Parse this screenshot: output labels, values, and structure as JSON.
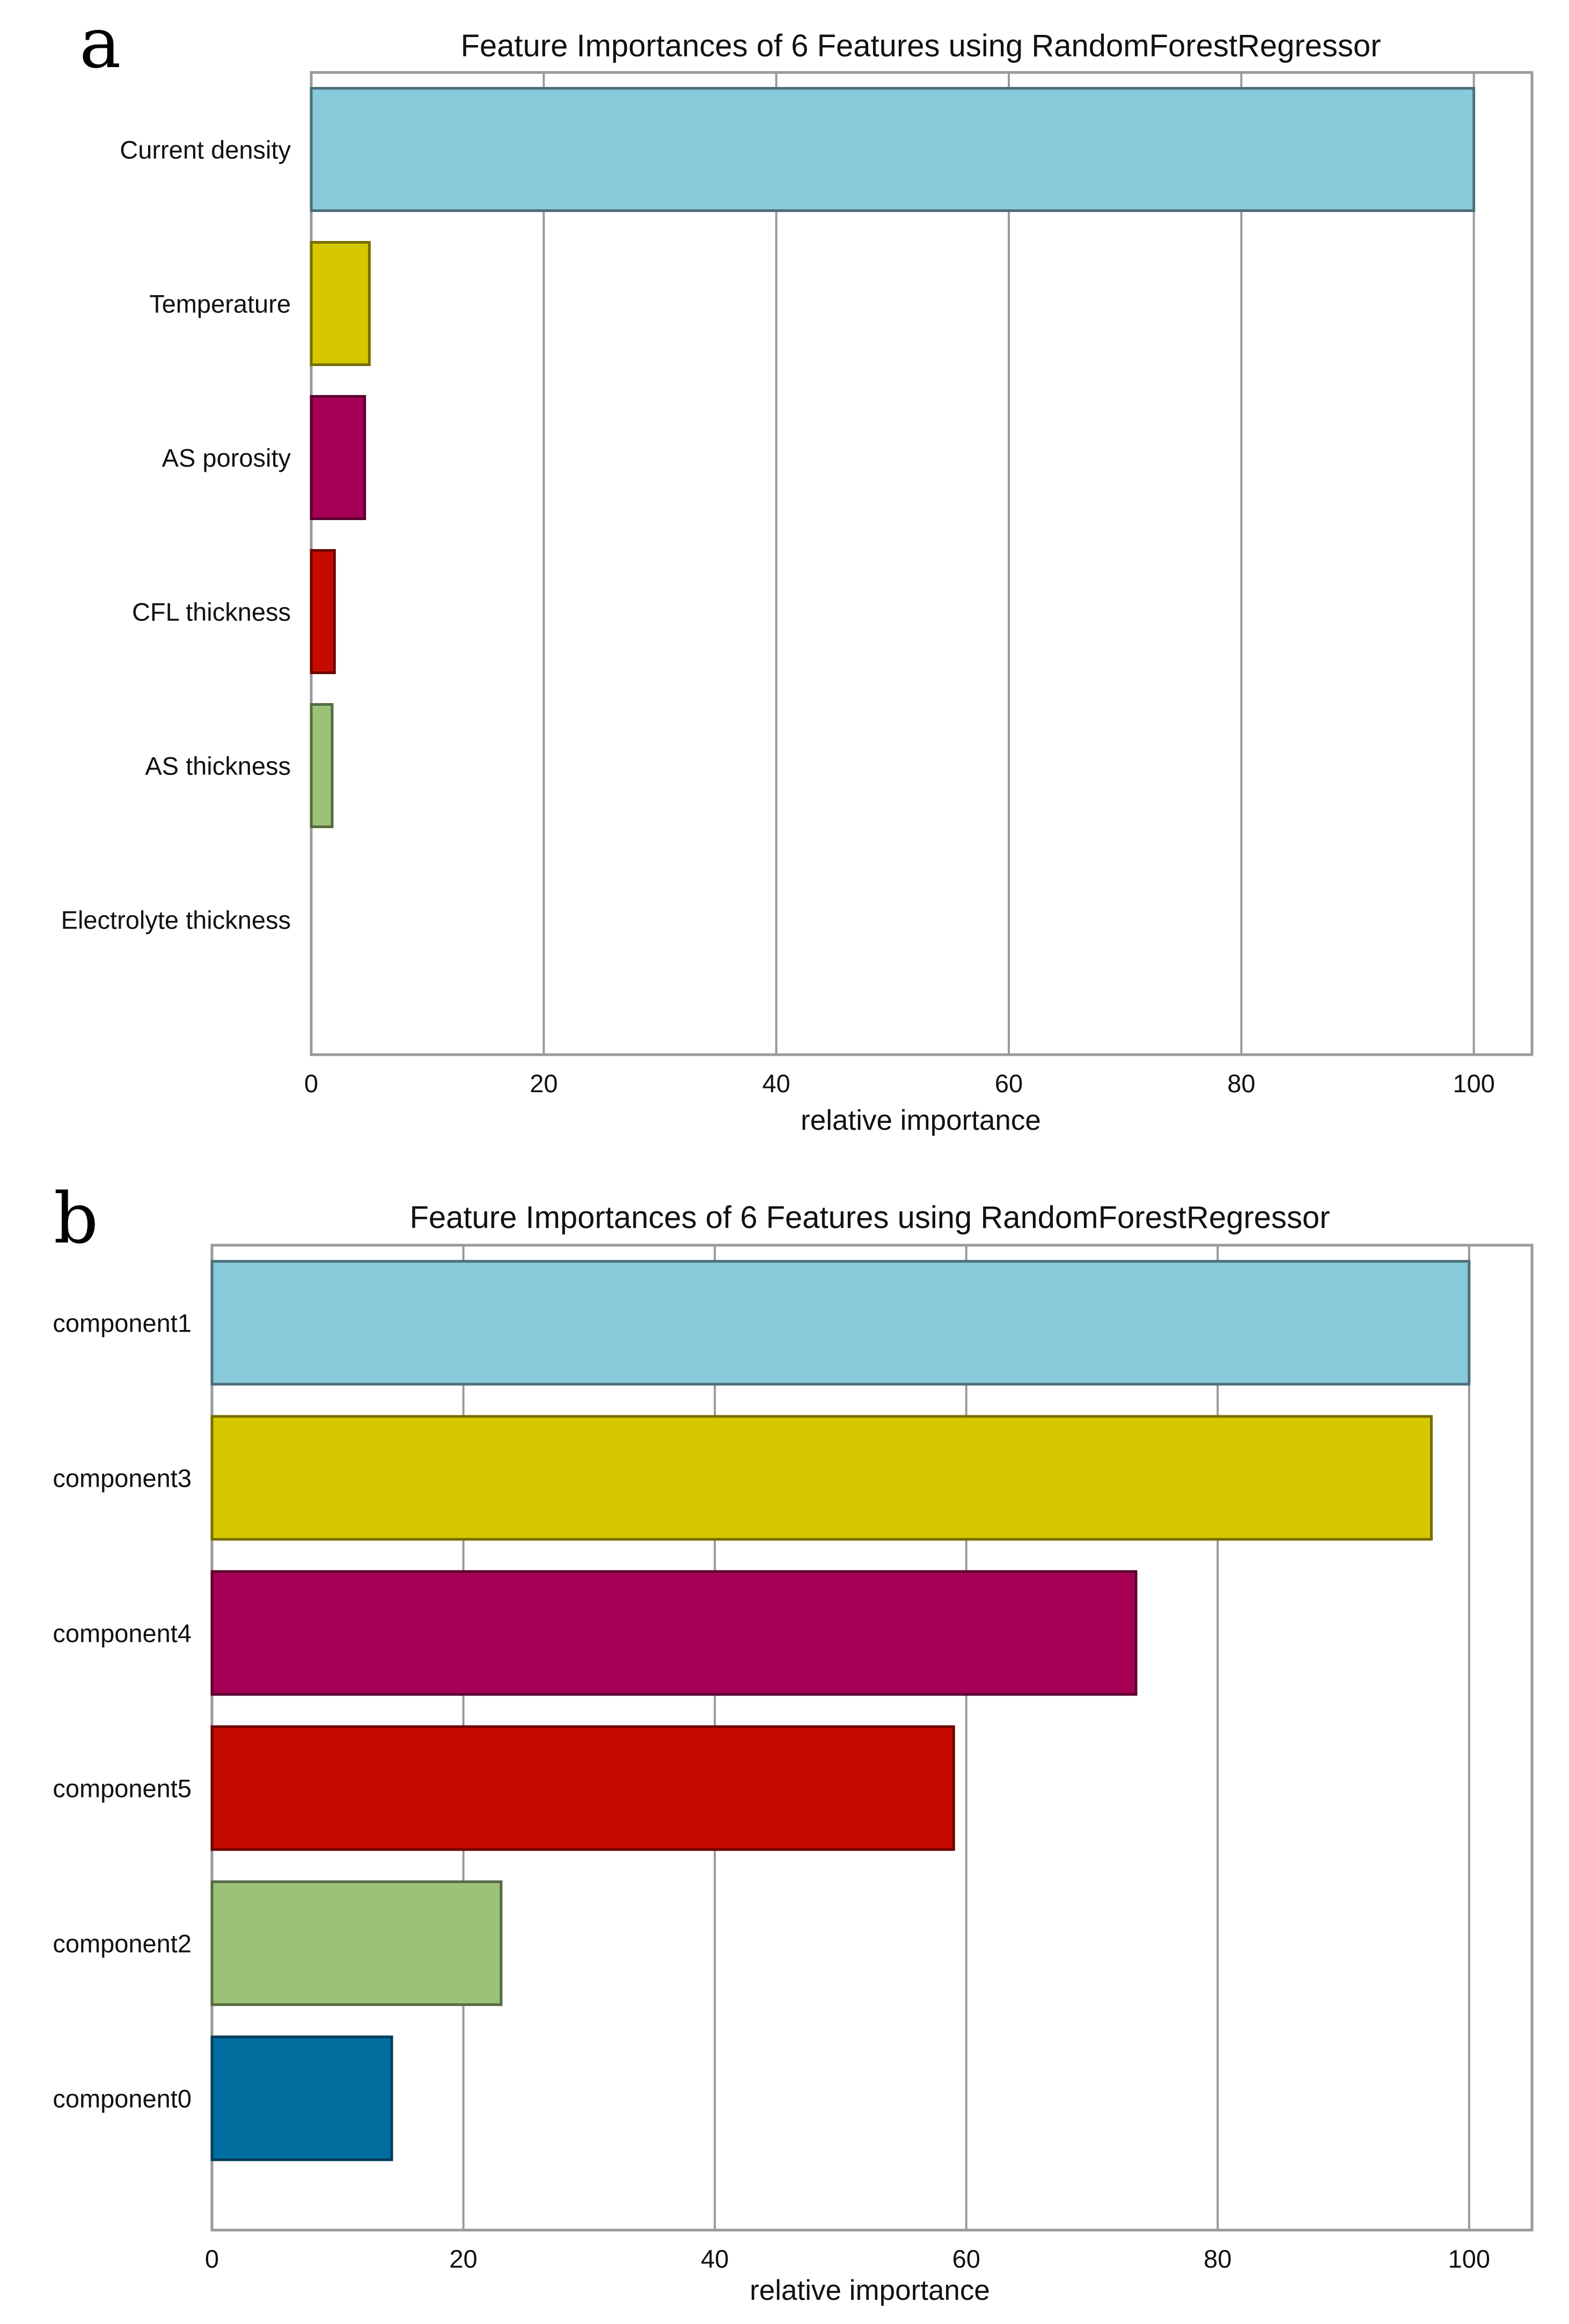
{
  "chart_data": [
    {
      "type": "bar",
      "orientation": "horizontal",
      "panel": "a",
      "title": "Feature Importances of 6 Features using RandomForestRegressor",
      "xlabel": "relative importance",
      "ylabel": "",
      "xlim": [
        0,
        105
      ],
      "xticks": [
        0,
        20,
        40,
        60,
        80,
        100
      ],
      "grid": "vertical",
      "categories": [
        "Current density",
        "Temperature",
        "AS porosity",
        "CFL thickness",
        "AS thickness",
        "Electrolyte thickness"
      ],
      "values": [
        100,
        5,
        4.6,
        2,
        1.8,
        0
      ],
      "colors": [
        "#88c9da",
        "#d6c800",
        "#a50055",
        "#c50b00",
        "#9cc278",
        "#006fa0"
      ]
    },
    {
      "type": "bar",
      "orientation": "horizontal",
      "panel": "b",
      "title": "Feature Importances of 6 Features using RandomForestRegressor",
      "xlabel": "relative importance",
      "ylabel": "",
      "xlim": [
        0,
        105
      ],
      "xticks": [
        0,
        20,
        40,
        60,
        80,
        100
      ],
      "grid": "vertical",
      "categories": [
        "component1",
        "component3",
        "component4",
        "component5",
        "component2",
        "component0"
      ],
      "values": [
        100,
        97,
        73.5,
        59,
        23,
        14.3
      ],
      "colors": [
        "#88c9da",
        "#d6c800",
        "#a50055",
        "#c50b00",
        "#9cc278",
        "#006fa0"
      ]
    }
  ]
}
